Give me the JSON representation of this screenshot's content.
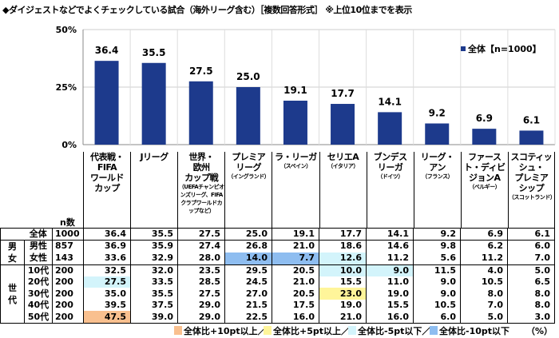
{
  "title": "◆ダイジェストなどでよくチェックしている試合（海外リーグ含む）［複数回答形式］ ※上位10位までを表示",
  "colors": {
    "bar": "#1d3a8c",
    "plus10": "#f9c08f",
    "plus5": "#fff59a",
    "minus5": "#d3f4fb",
    "minus10": "#8ebdf0"
  },
  "chart_data": {
    "type": "bar",
    "categories": [
      "代表戦・FIFAワールドカップ",
      "Jリーグ",
      "世界・欧州カップ戦",
      "プレミアリーグ",
      "ラ・リーガ",
      "セリエA",
      "ブンデスリーガ",
      "リーグ・アン",
      "ファースト・ディビジョンA",
      "スコティッシュ・プレミアシップ"
    ],
    "series": [
      {
        "name": "全体【n=1000】",
        "values": [
          36.4,
          35.5,
          27.5,
          25.0,
          19.1,
          17.7,
          14.1,
          9.2,
          6.9,
          6.1
        ]
      }
    ],
    "yticks": [
      "0%",
      "25%",
      "50%"
    ],
    "ylim": [
      0,
      50
    ],
    "grid": true,
    "legend_position": "top-right"
  },
  "category_labels": [
    {
      "main": [
        "代表戦・",
        "FIFA",
        "ワールド",
        "カップ"
      ],
      "sub": ""
    },
    {
      "main": [
        "Jリーグ"
      ],
      "sub": ""
    },
    {
      "main": [
        "世界・",
        "欧州",
        "カップ戦"
      ],
      "sub": "（UEFAチャンピオンズリーグ、FIFAクラブワールドカップなど）"
    },
    {
      "main": [
        "プレミア",
        "リーグ"
      ],
      "sub": "（イングランド）"
    },
    {
      "main": [
        "ラ・リーガ"
      ],
      "sub": "（スペイン）"
    },
    {
      "main": [
        "セリエA"
      ],
      "sub": "（イタリア）"
    },
    {
      "main": [
        "ブンデス",
        "リーガ"
      ],
      "sub": "（ドイツ）"
    },
    {
      "main": [
        "リーグ・",
        "アン"
      ],
      "sub": "（フランス）"
    },
    {
      "main": [
        "ファース",
        "ト・ディビ",
        "ジョンA"
      ],
      "sub": "（ベルギー）"
    },
    {
      "main": [
        "スコティッ",
        "シュ・",
        "プレミア",
        "シップ"
      ],
      "sub": "（スコットランド）"
    }
  ],
  "table": {
    "n_header": "n数",
    "groups": {
      "gender": "男女",
      "age": "世代"
    },
    "rows": [
      {
        "label": "全体",
        "n": "1000",
        "values": [
          "36.4",
          "35.5",
          "27.5",
          "25.0",
          "19.1",
          "17.7",
          "14.1",
          "9.2",
          "6.9",
          "6.1"
        ],
        "hl": {}
      },
      {
        "label": "男性",
        "n": "857",
        "values": [
          "36.9",
          "35.9",
          "27.4",
          "26.8",
          "21.0",
          "18.6",
          "14.6",
          "9.8",
          "6.2",
          "6.0"
        ],
        "hl": {}
      },
      {
        "label": "女性",
        "n": "143",
        "values": [
          "33.6",
          "32.9",
          "28.0",
          "14.0",
          "7.7",
          "12.6",
          "11.2",
          "5.6",
          "11.2",
          "7.0"
        ],
        "hl": {
          "3": "minus10",
          "4": "minus10",
          "5": "minus5"
        }
      },
      {
        "label": "10代",
        "n": "200",
        "values": [
          "32.5",
          "32.0",
          "23.5",
          "29.5",
          "20.5",
          "10.0",
          "9.0",
          "11.5",
          "4.0",
          "5.0"
        ],
        "hl": {
          "5": "minus5",
          "6": "minus5"
        }
      },
      {
        "label": "20代",
        "n": "200",
        "values": [
          "27.5",
          "33.5",
          "28.5",
          "24.5",
          "21.0",
          "15.5",
          "11.0",
          "9.0",
          "10.5",
          "6.5"
        ],
        "hl": {
          "0": "minus5"
        }
      },
      {
        "label": "30代",
        "n": "200",
        "values": [
          "35.0",
          "35.5",
          "27.5",
          "27.0",
          "20.5",
          "23.0",
          "19.0",
          "9.0",
          "8.0",
          "8.0"
        ],
        "hl": {
          "5": "plus5"
        }
      },
      {
        "label": "40代",
        "n": "200",
        "values": [
          "39.5",
          "37.5",
          "29.0",
          "21.5",
          "17.5",
          "19.0",
          "15.5",
          "10.5",
          "7.0",
          "8.0"
        ],
        "hl": {}
      },
      {
        "label": "50代",
        "n": "200",
        "values": [
          "47.5",
          "39.0",
          "29.0",
          "22.5",
          "16.0",
          "21.0",
          "16.0",
          "6.0",
          "5.0",
          "3.0"
        ],
        "hl": {
          "0": "plus10"
        }
      }
    ]
  },
  "legend": {
    "plus10": "全体比+10pt以上／",
    "plus5": "全体比+5pt以上／",
    "minus5": "全体比-5pt以下／",
    "minus10": "全体比-10pt以下",
    "unit": "（%）"
  }
}
